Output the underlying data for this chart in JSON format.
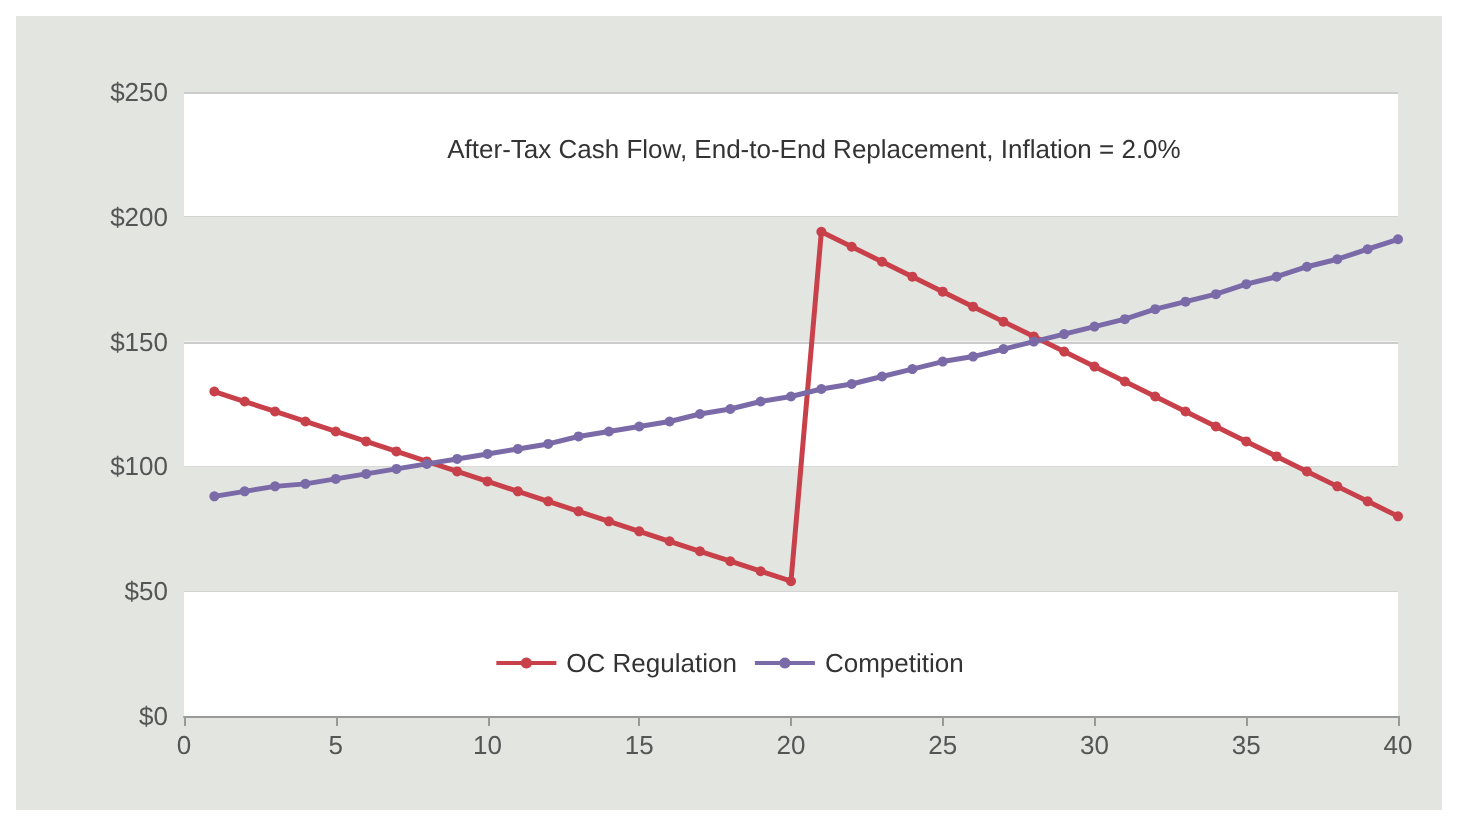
{
  "chart_data": {
    "type": "line",
    "title": "After-Tax Cash Flow, End-to-End Replacement, Inflation = 2.0%",
    "x": [
      1,
      2,
      3,
      4,
      5,
      6,
      7,
      8,
      9,
      10,
      11,
      12,
      13,
      14,
      15,
      16,
      17,
      18,
      19,
      20,
      21,
      22,
      23,
      24,
      25,
      26,
      27,
      28,
      29,
      30,
      31,
      32,
      33,
      34,
      35,
      36,
      37,
      38,
      39,
      40
    ],
    "series": [
      {
        "name": "OC Regulation",
        "color": "#c8414a",
        "values": [
          130,
          126,
          122,
          118,
          114,
          110,
          106,
          102,
          98,
          94,
          90,
          86,
          82,
          78,
          74,
          70,
          66,
          62,
          58,
          54,
          194,
          188,
          182,
          176,
          170,
          164,
          158,
          152,
          146,
          140,
          134,
          128,
          122,
          116,
          110,
          104,
          98,
          92,
          86,
          80
        ]
      },
      {
        "name": "Competition",
        "color": "#7a6aa8",
        "values": [
          88,
          90,
          92,
          93,
          95,
          97,
          99,
          101,
          103,
          105,
          107,
          109,
          112,
          114,
          116,
          118,
          121,
          123,
          126,
          128,
          131,
          133,
          136,
          139,
          142,
          144,
          147,
          150,
          153,
          156,
          159,
          163,
          166,
          169,
          173,
          176,
          180,
          183,
          187,
          191
        ]
      }
    ],
    "xlim": [
      0,
      40
    ],
    "xticks": [
      0,
      5,
      10,
      15,
      20,
      25,
      30,
      35,
      40
    ],
    "ylim": [
      0,
      250
    ],
    "yticks": [
      {
        "value": 0,
        "label": "$0"
      },
      {
        "value": 50,
        "label": "$50"
      },
      {
        "value": 100,
        "label": "$100"
      },
      {
        "value": 150,
        "label": "$150"
      },
      {
        "value": 200,
        "label": "$200"
      },
      {
        "value": 250,
        "label": "$250"
      }
    ],
    "bands": [
      {
        "axis": "y",
        "from": 50,
        "to": 100,
        "color": "#e3e5e1"
      },
      {
        "axis": "y",
        "from": 150,
        "to": 200,
        "color": "#e3e5e1"
      }
    ],
    "grid": "y",
    "legend": "bottom",
    "marker": "circle",
    "line_style": "solid"
  }
}
